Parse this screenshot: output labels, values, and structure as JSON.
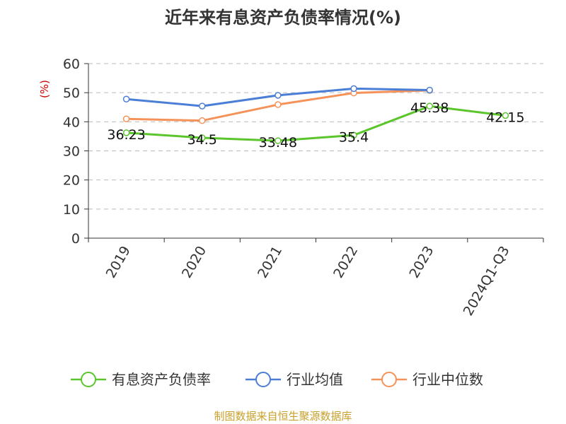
{
  "chart_data": {
    "type": "line",
    "title": "近年来有息资产负债率情况(%)",
    "ylabel": "(%)",
    "ylim": [
      0,
      60
    ],
    "yticks": [
      0,
      10,
      20,
      30,
      40,
      50,
      60
    ],
    "grid": true,
    "legend_position": "bottom",
    "categories": [
      "2019",
      "2020",
      "2021",
      "2022",
      "2023",
      "2024Q1-Q3"
    ],
    "series": [
      {
        "name": "有息资产负债率",
        "color": "#5bc52c",
        "values": [
          36.23,
          34.5,
          33.48,
          35.4,
          45.38,
          42.15
        ],
        "labels": [
          "36.23",
          "34.5",
          "33.48",
          "35.4",
          "45.38",
          "42.15"
        ]
      },
      {
        "name": "行业均值",
        "color": "#4b7fd6",
        "values": [
          47.8,
          45.4,
          49.1,
          51.4,
          50.9,
          null
        ]
      },
      {
        "name": "行业中位数",
        "color": "#f5925a",
        "values": [
          41.0,
          40.4,
          45.9,
          49.9,
          50.8,
          null
        ]
      }
    ]
  },
  "source": "制图数据来自恒生聚源数据库"
}
